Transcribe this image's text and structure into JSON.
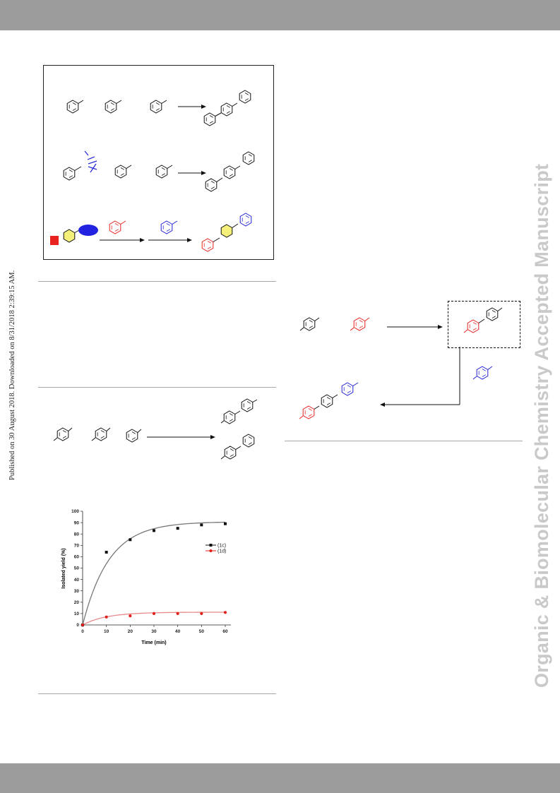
{
  "margin_note": "Published on 30 August 2018. Downloaded on 8/31/2018 2:39:15 AM.",
  "watermark": "Organic & Biomolecular Chemistry Accepted Manuscript",
  "colors": {
    "header_bar": "#9c9c9c",
    "rule": "#a8a8a8",
    "red": "#e8231f",
    "blue": "#2323d6",
    "yellow": "#f4f07a",
    "series_1c": "#111111",
    "series_1d": "#e0201b"
  },
  "chart_data": {
    "type": "scatter",
    "xlabel": "Time (min)",
    "ylabel": "Isolated yield (%)",
    "xlim": [
      0,
      60
    ],
    "ylim": [
      0,
      100
    ],
    "x_ticks": [
      0,
      10,
      20,
      30,
      40,
      50,
      60
    ],
    "y_ticks": [
      0,
      10,
      20,
      30,
      40,
      50,
      60,
      70,
      80,
      90,
      100
    ],
    "legend_position": "right",
    "series": [
      {
        "name": "(1c)",
        "x": [
          0,
          10,
          20,
          30,
          40,
          50,
          60
        ],
        "y": [
          0,
          64,
          75,
          83,
          85,
          88,
          89
        ]
      },
      {
        "name": "(1d)",
        "x": [
          0,
          10,
          20,
          30,
          40,
          50,
          60
        ],
        "y": [
          0,
          7,
          8,
          10,
          10,
          10,
          11
        ]
      }
    ]
  }
}
